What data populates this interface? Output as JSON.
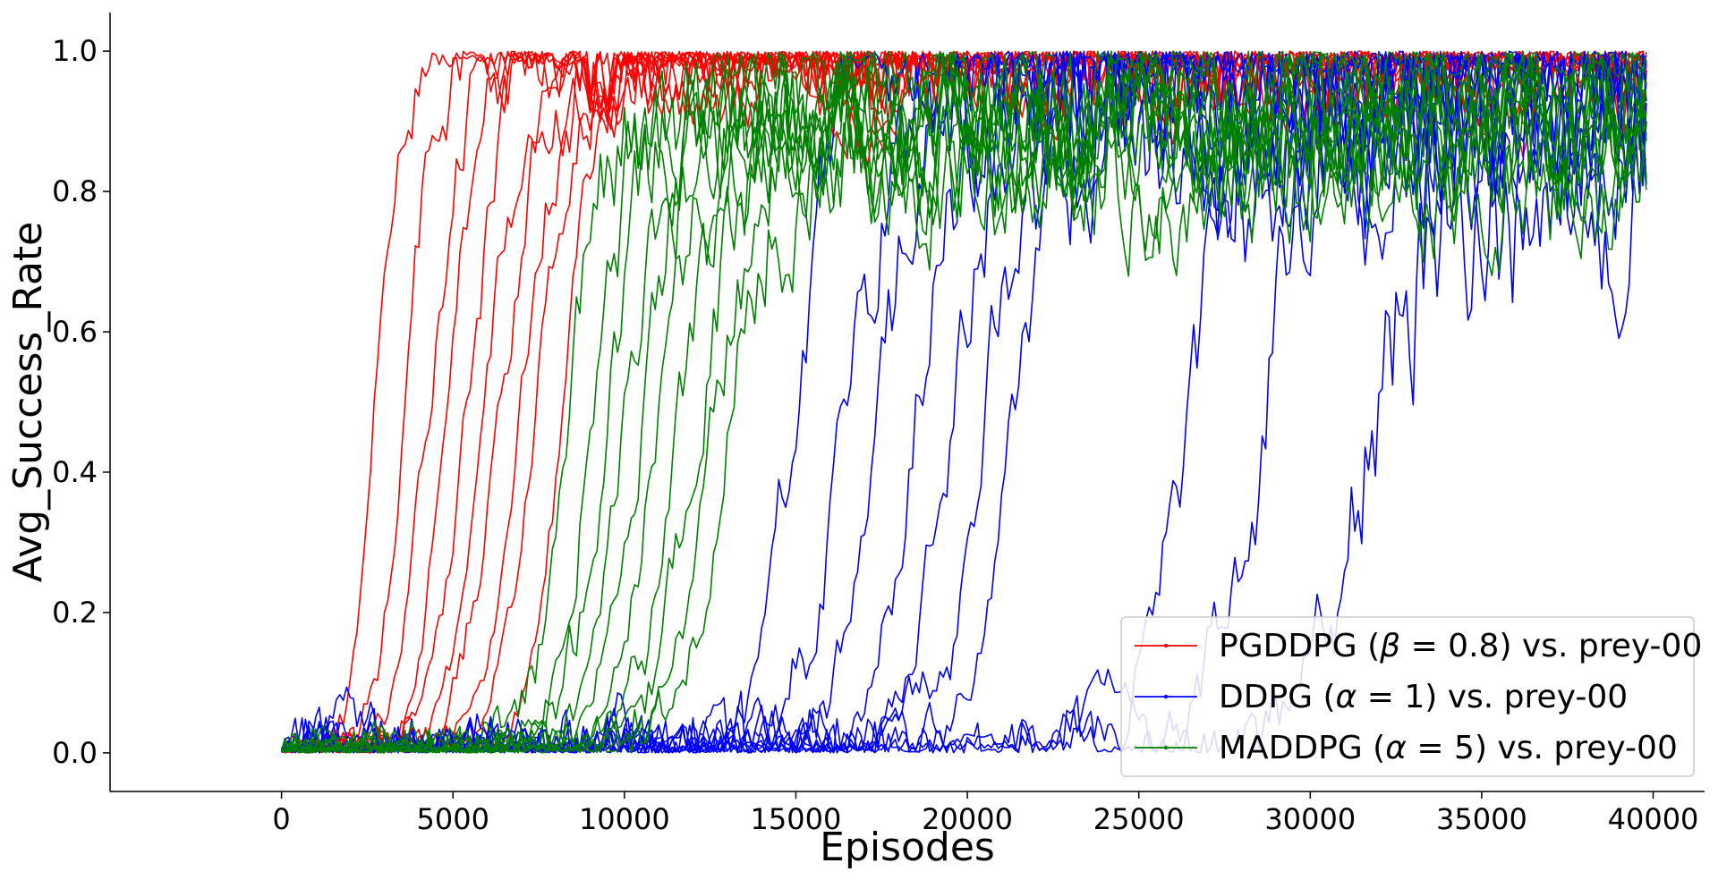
{
  "chart_data": {
    "type": "line",
    "title": "",
    "xlabel": "Episodes",
    "ylabel": "Avg_Success_Rate",
    "xlim": [
      -5000,
      41500
    ],
    "ylim": [
      -0.055,
      1.055
    ],
    "x_ticks": [
      0,
      5000,
      10000,
      15000,
      20000,
      25000,
      30000,
      35000,
      40000
    ],
    "x_tick_labels": [
      "0",
      "5000",
      "10000",
      "15000",
      "20000",
      "25000",
      "30000",
      "35000",
      "40000"
    ],
    "y_ticks": [
      0.0,
      0.2,
      0.4,
      0.6,
      0.8,
      1.0
    ],
    "y_tick_labels": [
      "0.0",
      "0.2",
      "0.4",
      "0.6",
      "0.8",
      "1.0"
    ],
    "grid": false,
    "legend_position": "lower-right",
    "x_start": 0,
    "x_step": 100,
    "x_end": 39800,
    "groups": [
      {
        "name": "PGDDPG (β=0.8) vs. prey-00",
        "label_prefix": "PGDDPG (",
        "label_symbol": "β",
        "label_value": " = 0.8",
        "label_suffix": ") vs. prey-00",
        "color": "#ff0000",
        "runs": [
          {
            "rise_mid": 2700,
            "rise_width": 700,
            "plateau": 0.99,
            "noise": 0.035,
            "seed": 11
          },
          {
            "rise_mid": 3600,
            "rise_width": 900,
            "plateau": 0.99,
            "noise": 0.04,
            "seed": 12
          },
          {
            "rise_mid": 4300,
            "rise_width": 1000,
            "plateau": 0.99,
            "noise": 0.04,
            "seed": 13
          },
          {
            "rise_mid": 4800,
            "rise_width": 1100,
            "plateau": 0.99,
            "noise": 0.045,
            "seed": 14
          },
          {
            "rise_mid": 5400,
            "rise_width": 1200,
            "plateau": 0.99,
            "noise": 0.045,
            "seed": 15
          },
          {
            "rise_mid": 5900,
            "rise_width": 1200,
            "plateau": 0.99,
            "noise": 0.04,
            "seed": 16
          },
          {
            "rise_mid": 6400,
            "rise_width": 1300,
            "plateau": 0.99,
            "noise": 0.045,
            "seed": 17
          },
          {
            "rise_mid": 7000,
            "rise_width": 1200,
            "plateau": 0.99,
            "noise": 0.04,
            "seed": 18
          },
          {
            "rise_mid": 7500,
            "rise_width": 1300,
            "plateau": 0.99,
            "noise": 0.04,
            "seed": 19
          },
          {
            "rise_mid": 8200,
            "rise_width": 1100,
            "plateau": 0.99,
            "noise": 0.035,
            "seed": 20
          }
        ]
      },
      {
        "name": "DDPG (α=1) vs. prey-00",
        "label_prefix": "DDPG (",
        "label_symbol": "α",
        "label_value": " = 1",
        "label_suffix": ") vs. prey-00",
        "color": "#0000ff",
        "runs": [
          {
            "rise_mid": 15000,
            "rise_width": 1400,
            "plateau": 0.95,
            "noise": 0.07,
            "seed": 31
          },
          {
            "rise_mid": 16500,
            "rise_width": 1500,
            "plateau": 0.95,
            "noise": 0.08,
            "seed": 32
          },
          {
            "rise_mid": 17500,
            "rise_width": 1400,
            "plateau": 0.94,
            "noise": 0.08,
            "seed": 33
          },
          {
            "rise_mid": 18500,
            "rise_width": 1500,
            "plateau": 0.95,
            "noise": 0.08,
            "seed": 34
          },
          {
            "rise_mid": 19500,
            "rise_width": 1400,
            "plateau": 0.95,
            "noise": 0.08,
            "seed": 35
          },
          {
            "rise_mid": 20500,
            "rise_width": 1500,
            "plateau": 0.94,
            "noise": 0.09,
            "seed": 36
          },
          {
            "rise_mid": 21500,
            "rise_width": 1500,
            "plateau": 0.95,
            "noise": 0.08,
            "seed": 37
          },
          {
            "rise_mid": 26500,
            "rise_width": 1600,
            "plateau": 0.92,
            "noise": 0.1,
            "seed": 38
          },
          {
            "rise_mid": 28500,
            "rise_width": 1700,
            "plateau": 0.9,
            "noise": 0.1,
            "seed": 39
          },
          {
            "rise_mid": 31500,
            "rise_width": 1800,
            "plateau": 0.82,
            "noise": 0.12,
            "seed": 40
          }
        ]
      },
      {
        "name": "MADDPG (α=5) vs. prey-00",
        "label_prefix": "MADDPG (",
        "label_symbol": "α",
        "label_value": " = 5",
        "label_suffix": ") vs. prey-00",
        "color": "#008000",
        "runs": [
          {
            "rise_mid": 8300,
            "rise_width": 1100,
            "plateau": 0.9,
            "noise": 0.06,
            "seed": 51
          },
          {
            "rise_mid": 8900,
            "rise_width": 1200,
            "plateau": 0.91,
            "noise": 0.06,
            "seed": 52
          },
          {
            "rise_mid": 9500,
            "rise_width": 1300,
            "plateau": 0.9,
            "noise": 0.065,
            "seed": 53
          },
          {
            "rise_mid": 10000,
            "rise_width": 1300,
            "plateau": 0.9,
            "noise": 0.06,
            "seed": 54
          },
          {
            "rise_mid": 10500,
            "rise_width": 1400,
            "plateau": 0.89,
            "noise": 0.065,
            "seed": 55
          },
          {
            "rise_mid": 11000,
            "rise_width": 1400,
            "plateau": 0.9,
            "noise": 0.06,
            "seed": 56
          },
          {
            "rise_mid": 11500,
            "rise_width": 1300,
            "plateau": 0.88,
            "noise": 0.07,
            "seed": 57
          },
          {
            "rise_mid": 12000,
            "rise_width": 1400,
            "plateau": 0.89,
            "noise": 0.065,
            "seed": 58
          },
          {
            "rise_mid": 12500,
            "rise_width": 1500,
            "plateau": 0.87,
            "noise": 0.07,
            "seed": 59
          },
          {
            "rise_mid": 13000,
            "rise_width": 1500,
            "plateau": 0.86,
            "noise": 0.07,
            "seed": 60
          }
        ]
      }
    ]
  }
}
